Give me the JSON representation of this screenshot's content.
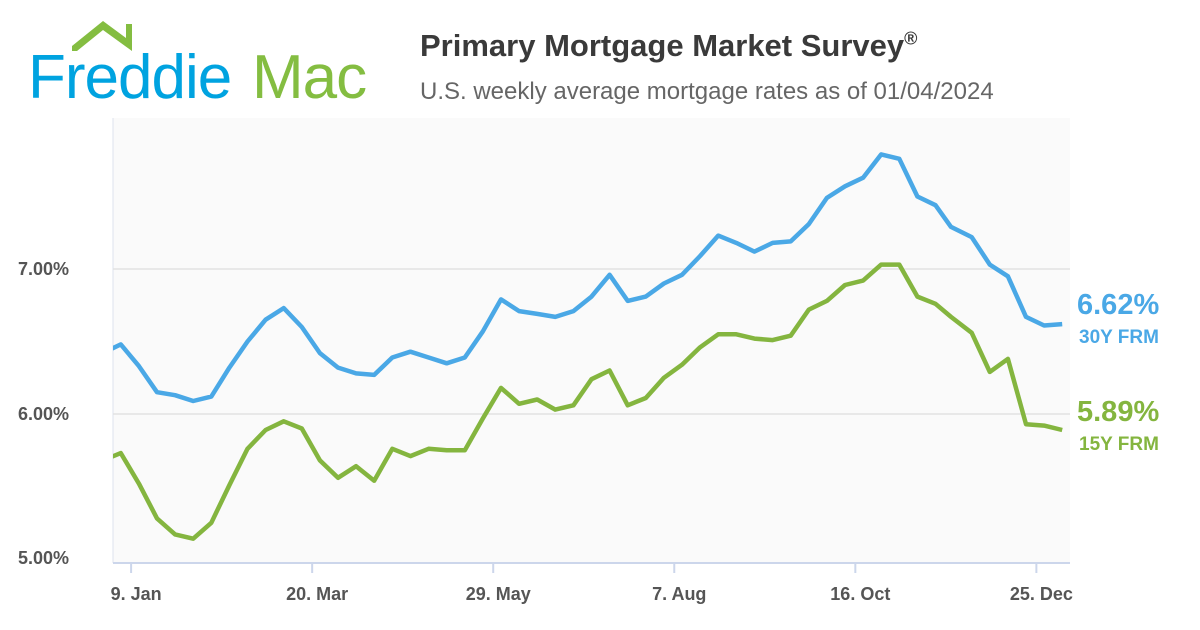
{
  "brand": {
    "name_part1": "Freddie",
    "name_part2": "Mac",
    "blue": "#00a3e0",
    "green": "#84bd41"
  },
  "header": {
    "title": "Primary Mortgage Market Survey",
    "title_mark": "®",
    "subtitle": "U.S. weekly average mortgage rates as of 01/04/2024"
  },
  "chart_data": {
    "type": "line",
    "title": "Primary Mortgage Market Survey®",
    "subtitle": "U.S. weekly average mortgage rates as of 01/04/2024",
    "xlim": [
      "2023-01-02",
      "2024-01-07"
    ],
    "ylim": [
      5.0,
      8.05
    ],
    "grid": true,
    "x_ticks": [
      {
        "date": "2023-01-09",
        "label": "9. Jan"
      },
      {
        "date": "2023-03-20",
        "label": "20. Mar"
      },
      {
        "date": "2023-05-29",
        "label": "29. May"
      },
      {
        "date": "2023-08-07",
        "label": "7. Aug"
      },
      {
        "date": "2023-10-16",
        "label": "16. Oct"
      },
      {
        "date": "2023-12-25",
        "label": "25. Dec"
      }
    ],
    "y_ticks": [
      {
        "value": 5.0,
        "label": "5.00%"
      },
      {
        "value": 6.0,
        "label": "6.00%"
      },
      {
        "value": 7.0,
        "label": "7.00%"
      }
    ],
    "x": [
      "2022-12-29",
      "2023-01-05",
      "2023-01-12",
      "2023-01-19",
      "2023-01-26",
      "2023-02-02",
      "2023-02-09",
      "2023-02-16",
      "2023-02-23",
      "2023-03-02",
      "2023-03-09",
      "2023-03-16",
      "2023-03-23",
      "2023-03-30",
      "2023-04-06",
      "2023-04-13",
      "2023-04-20",
      "2023-04-27",
      "2023-05-04",
      "2023-05-11",
      "2023-05-18",
      "2023-05-25",
      "2023-06-01",
      "2023-06-08",
      "2023-06-15",
      "2023-06-22",
      "2023-06-29",
      "2023-07-06",
      "2023-07-13",
      "2023-07-20",
      "2023-07-27",
      "2023-08-03",
      "2023-08-10",
      "2023-08-17",
      "2023-08-24",
      "2023-08-31",
      "2023-09-07",
      "2023-09-14",
      "2023-09-21",
      "2023-09-28",
      "2023-10-05",
      "2023-10-12",
      "2023-10-19",
      "2023-10-26",
      "2023-11-02",
      "2023-11-09",
      "2023-11-16",
      "2023-11-22",
      "2023-11-30",
      "2023-12-07",
      "2023-12-14",
      "2023-12-21",
      "2023-12-28",
      "2024-01-04"
    ],
    "series": [
      {
        "name": "30Y FRM",
        "latest": "6.62%",
        "color": "#4aa8e6",
        "values": [
          6.42,
          6.48,
          6.33,
          6.15,
          6.13,
          6.09,
          6.12,
          6.32,
          6.5,
          6.65,
          6.73,
          6.6,
          6.42,
          6.32,
          6.28,
          6.27,
          6.39,
          6.43,
          6.39,
          6.35,
          6.39,
          6.57,
          6.79,
          6.71,
          6.69,
          6.67,
          6.71,
          6.81,
          6.96,
          6.78,
          6.81,
          6.9,
          6.96,
          7.09,
          7.23,
          7.18,
          7.12,
          7.18,
          7.19,
          7.31,
          7.49,
          7.57,
          7.63,
          7.79,
          7.76,
          7.5,
          7.44,
          7.29,
          7.22,
          7.03,
          6.95,
          6.67,
          6.61,
          6.62
        ]
      },
      {
        "name": "15Y FRM",
        "latest": "5.89%",
        "color": "#84b53f",
        "values": [
          5.68,
          5.73,
          5.52,
          5.28,
          5.17,
          5.14,
          5.25,
          5.51,
          5.76,
          5.89,
          5.95,
          5.9,
          5.68,
          5.56,
          5.64,
          5.54,
          5.76,
          5.71,
          5.76,
          5.75,
          5.75,
          5.97,
          6.18,
          6.07,
          6.1,
          6.03,
          6.06,
          6.24,
          6.3,
          6.06,
          6.11,
          6.25,
          6.34,
          6.46,
          6.55,
          6.55,
          6.52,
          6.51,
          6.54,
          6.72,
          6.78,
          6.89,
          6.92,
          7.03,
          7.03,
          6.81,
          6.76,
          6.67,
          6.56,
          6.29,
          6.38,
          5.93,
          5.92,
          5.89
        ]
      }
    ]
  }
}
